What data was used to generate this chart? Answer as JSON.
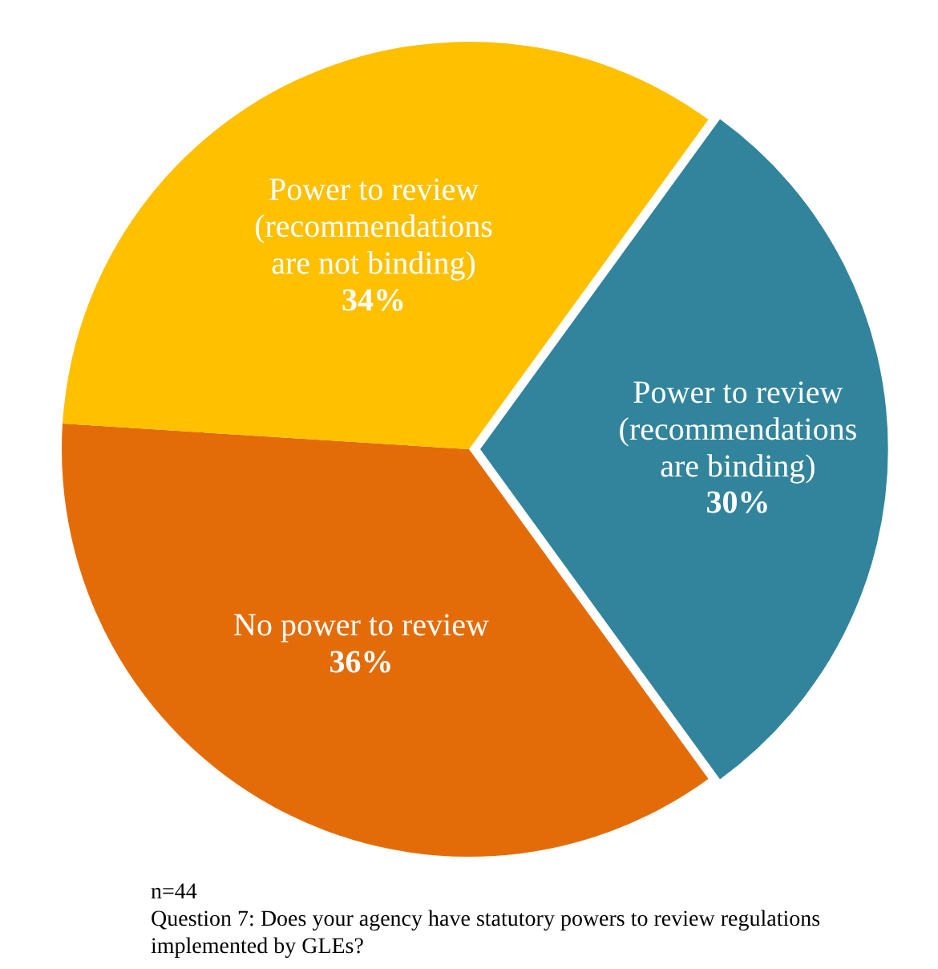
{
  "chart_data": {
    "type": "pie",
    "categories": [
      "Power to review (recommendations are binding)",
      "No power to review",
      "Power to review (recommendations are not binding)"
    ],
    "values": [
      30,
      36,
      34
    ],
    "colors": [
      "#31849b",
      "#e36c09",
      "#ffc000"
    ],
    "value_labels": [
      "30%",
      "36%",
      "34%"
    ],
    "legend": false,
    "annotations": [
      "n=44",
      "Question 7: Does your agency have statutory powers to review regulations implemented by GLEs?"
    ]
  }
}
